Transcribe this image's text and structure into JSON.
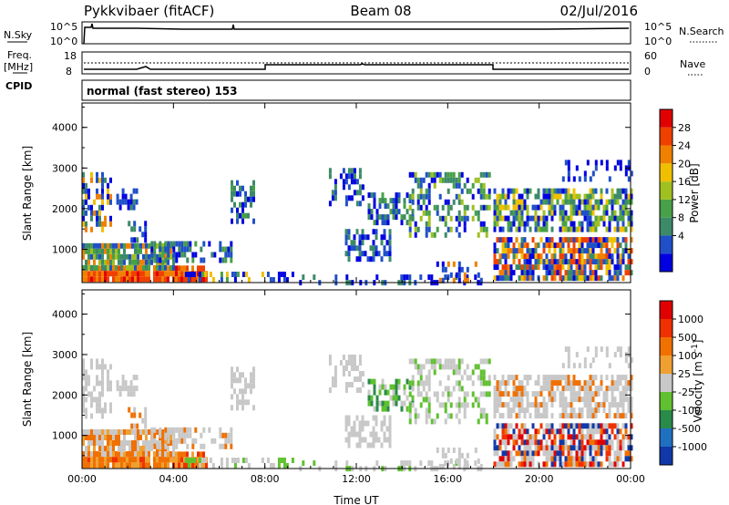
{
  "header": {
    "station": "Pykkvibaer (fitACF)",
    "beam": "Beam 08",
    "date": "02/Jul/2016"
  },
  "noise_panel": {
    "left_label": "N.Sky",
    "right_label": "N.Search",
    "left_ticks": [
      "10^5",
      "10^0"
    ],
    "right_ticks": [
      "10^5",
      "10^0"
    ]
  },
  "freq_panel": {
    "left_label_line1": "Freq.",
    "left_label_line2": "[MHz]",
    "right_label": "Nave",
    "left_ticks": [
      "18",
      "8"
    ],
    "right_ticks": [
      "60",
      "0"
    ]
  },
  "cpid_panel": {
    "label": "CPID",
    "text": "normal (fast stereo) 153"
  },
  "chart_data": [
    {
      "type": "heatmap",
      "quantity": "Power",
      "ylabel": "Slant Range [km]",
      "xlabel": "Time UT",
      "ylim": [
        180,
        4600
      ],
      "yticks": [
        "1000",
        "2000",
        "3000",
        "4000"
      ],
      "xticks": [
        "00:00",
        "04:00",
        "08:00",
        "12:00",
        "16:00",
        "20:00",
        "00:00"
      ],
      "colorbar_label": "Power [dB]",
      "colorbar_ticks": [
        "28",
        "24",
        "20",
        "16",
        "12",
        "8",
        "4"
      ],
      "colors": [
        "#0000e0",
        "#2050c8",
        "#3c8a68",
        "#48a048",
        "#a0c020",
        "#f0c000",
        "#f08000",
        "#f04000",
        "#e00000"
      ]
    },
    {
      "type": "heatmap",
      "quantity": "Velocity",
      "ylabel": "Slant Range [km]",
      "xlabel": "Time UT",
      "ylim": [
        180,
        4600
      ],
      "yticks": [
        "1000",
        "2000",
        "3000",
        "4000"
      ],
      "xticks": [
        "00:00",
        "04:00",
        "08:00",
        "12:00",
        "16:00",
        "20:00",
        "00:00"
      ],
      "colorbar_label": "Velocity [m s",
      "colorbar_label_sup": "-1",
      "colorbar_label_end": "]",
      "colorbar_ticks": [
        "1000",
        "500",
        "100",
        "25",
        "-25",
        "-100",
        "-500",
        "-1000"
      ],
      "colors": [
        "#1038a8",
        "#2070c0",
        "#2a8a4a",
        "#60c030",
        "#c8c8c8",
        "#f0a030",
        "#f07000",
        "#f03000",
        "#e00000"
      ]
    }
  ]
}
